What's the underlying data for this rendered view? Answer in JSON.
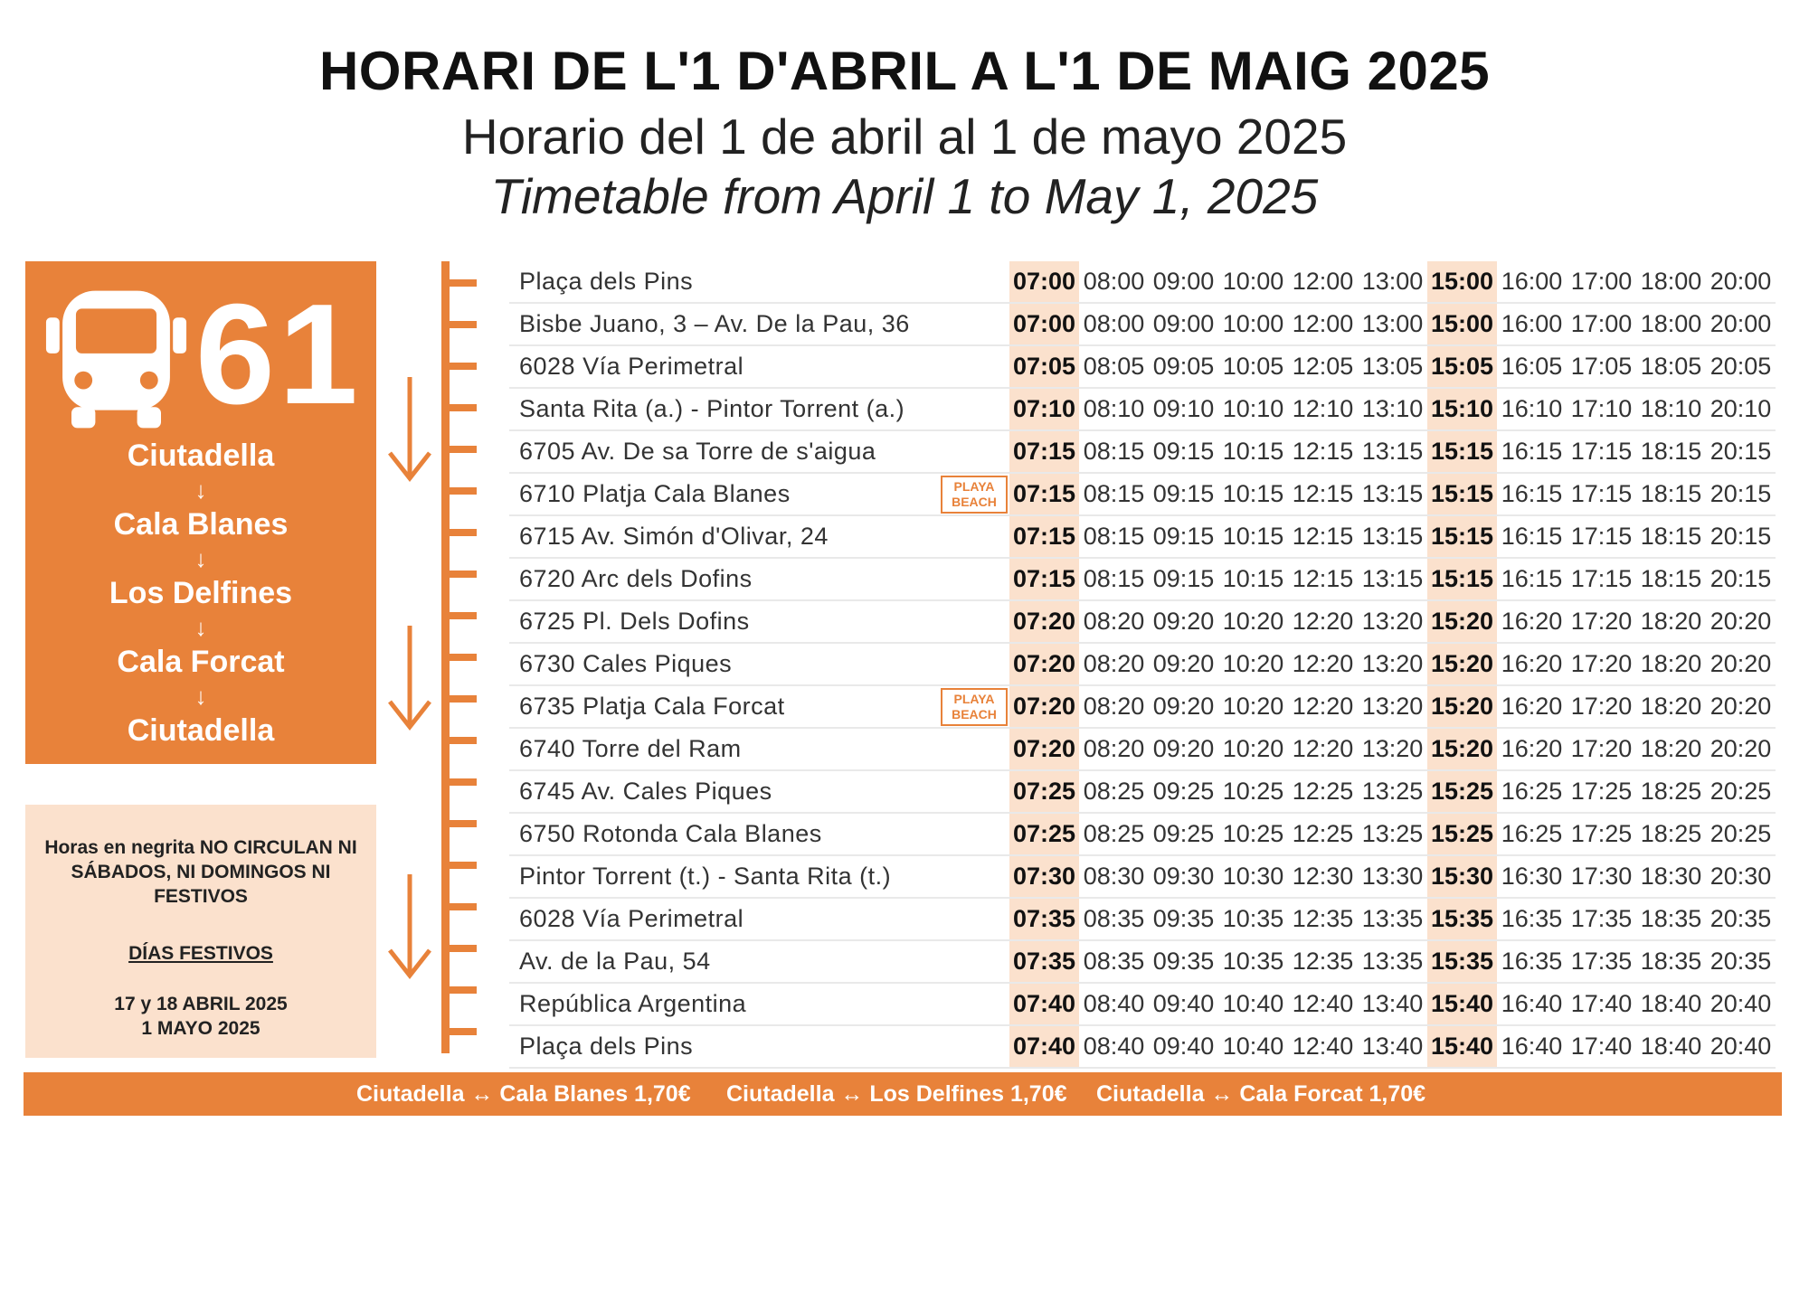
{
  "titles": {
    "catalan": "HORARI DE L'1 D'ABRIL A L'1 DE MAIG 2025",
    "spanish": "Horario del 1 de abril al 1 de mayo 2025",
    "english": "Timetable from April 1 to May 1, 2025"
  },
  "route": {
    "number": "61",
    "stops": [
      "Ciutadella",
      "Cala Blanes",
      "Los Delfines",
      "Cala Forcat",
      "Ciutadella"
    ],
    "arrow": "↓"
  },
  "note": {
    "main": "Horas en negrita NO CIRCULAN NI SÁBADOS, NI DOMINGOS NI FESTIVOS",
    "holidays_heading": "DÍAS FESTIVOS",
    "dates_1": "17 y 18 ABRIL 2025",
    "dates_2": "1 MAYO 2025"
  },
  "badge": {
    "line1": "PLAYA",
    "line2": "BEACH"
  },
  "bold_columns": [
    0,
    6
  ],
  "timetable": [
    {
      "stop": "Plaça dels Pins",
      "times": [
        "07:00",
        "08:00",
        "09:00",
        "10:00",
        "12:00",
        "13:00",
        "15:00",
        "16:00",
        "17:00",
        "18:00",
        "20:00"
      ]
    },
    {
      "stop": "Bisbe Juano, 3 – Av. De la Pau, 36",
      "times": [
        "07:00",
        "08:00",
        "09:00",
        "10:00",
        "12:00",
        "13:00",
        "15:00",
        "16:00",
        "17:00",
        "18:00",
        "20:00"
      ]
    },
    {
      "stop": "6028 Vía Perimetral",
      "times": [
        "07:05",
        "08:05",
        "09:05",
        "10:05",
        "12:05",
        "13:05",
        "15:05",
        "16:05",
        "17:05",
        "18:05",
        "20:05"
      ]
    },
    {
      "stop": "Santa Rita (a.) - Pintor Torrent (a.)",
      "times": [
        "07:10",
        "08:10",
        "09:10",
        "10:10",
        "12:10",
        "13:10",
        "15:10",
        "16:10",
        "17:10",
        "18:10",
        "20:10"
      ]
    },
    {
      "stop": "6705 Av. De sa Torre de s'aigua",
      "times": [
        "07:15",
        "08:15",
        "09:15",
        "10:15",
        "12:15",
        "13:15",
        "15:15",
        "16:15",
        "17:15",
        "18:15",
        "20:15"
      ]
    },
    {
      "stop": "6710 Platja Cala Blanes",
      "beach": true,
      "times": [
        "07:15",
        "08:15",
        "09:15",
        "10:15",
        "12:15",
        "13:15",
        "15:15",
        "16:15",
        "17:15",
        "18:15",
        "20:15"
      ]
    },
    {
      "stop": "6715 Av. Simón d'Olivar, 24",
      "times": [
        "07:15",
        "08:15",
        "09:15",
        "10:15",
        "12:15",
        "13:15",
        "15:15",
        "16:15",
        "17:15",
        "18:15",
        "20:15"
      ]
    },
    {
      "stop": "6720 Arc dels Dofins",
      "times": [
        "07:15",
        "08:15",
        "09:15",
        "10:15",
        "12:15",
        "13:15",
        "15:15",
        "16:15",
        "17:15",
        "18:15",
        "20:15"
      ]
    },
    {
      "stop": "6725 Pl. Dels Dofins",
      "times": [
        "07:20",
        "08:20",
        "09:20",
        "10:20",
        "12:20",
        "13:20",
        "15:20",
        "16:20",
        "17:20",
        "18:20",
        "20:20"
      ]
    },
    {
      "stop": "6730 Cales Piques",
      "times": [
        "07:20",
        "08:20",
        "09:20",
        "10:20",
        "12:20",
        "13:20",
        "15:20",
        "16:20",
        "17:20",
        "18:20",
        "20:20"
      ]
    },
    {
      "stop": "6735 Platja Cala Forcat",
      "beach": true,
      "times": [
        "07:20",
        "08:20",
        "09:20",
        "10:20",
        "12:20",
        "13:20",
        "15:20",
        "16:20",
        "17:20",
        "18:20",
        "20:20"
      ]
    },
    {
      "stop": "6740 Torre del Ram",
      "times": [
        "07:20",
        "08:20",
        "09:20",
        "10:20",
        "12:20",
        "13:20",
        "15:20",
        "16:20",
        "17:20",
        "18:20",
        "20:20"
      ]
    },
    {
      "stop": "6745 Av. Cales Piques",
      "times": [
        "07:25",
        "08:25",
        "09:25",
        "10:25",
        "12:25",
        "13:25",
        "15:25",
        "16:25",
        "17:25",
        "18:25",
        "20:25"
      ]
    },
    {
      "stop": "6750 Rotonda Cala Blanes",
      "times": [
        "07:25",
        "08:25",
        "09:25",
        "10:25",
        "12:25",
        "13:25",
        "15:25",
        "16:25",
        "17:25",
        "18:25",
        "20:25"
      ]
    },
    {
      "stop": "Pintor Torrent (t.) - Santa Rita (t.)",
      "times": [
        "07:30",
        "08:30",
        "09:30",
        "10:30",
        "12:30",
        "13:30",
        "15:30",
        "16:30",
        "17:30",
        "18:30",
        "20:30"
      ]
    },
    {
      "stop": "6028 Vía Perimetral",
      "times": [
        "07:35",
        "08:35",
        "09:35",
        "10:35",
        "12:35",
        "13:35",
        "15:35",
        "16:35",
        "17:35",
        "18:35",
        "20:35"
      ]
    },
    {
      "stop": "Av. de la Pau, 54",
      "times": [
        "07:35",
        "08:35",
        "09:35",
        "10:35",
        "12:35",
        "13:35",
        "15:35",
        "16:35",
        "17:35",
        "18:35",
        "20:35"
      ]
    },
    {
      "stop": "República Argentina",
      "times": [
        "07:40",
        "08:40",
        "09:40",
        "10:40",
        "12:40",
        "13:40",
        "15:40",
        "16:40",
        "17:40",
        "18:40",
        "20:40"
      ]
    },
    {
      "stop": "Plaça dels Pins",
      "times": [
        "07:40",
        "08:40",
        "09:40",
        "10:40",
        "12:40",
        "13:40",
        "15:40",
        "16:40",
        "17:40",
        "18:40",
        "20:40"
      ]
    }
  ],
  "fares": [
    "Ciutadella ↔ Cala Blanes 1,70€",
    "Ciutadella ↔ Los Delfines 1,70€",
    "Ciutadella ↔ Cala Forcat 1,70€"
  ],
  "colors": {
    "accent": "#E8823A",
    "light": "#FBE1CD"
  },
  "icons": {
    "bus": "bus-icon",
    "direction": "down-arrow-icon"
  }
}
